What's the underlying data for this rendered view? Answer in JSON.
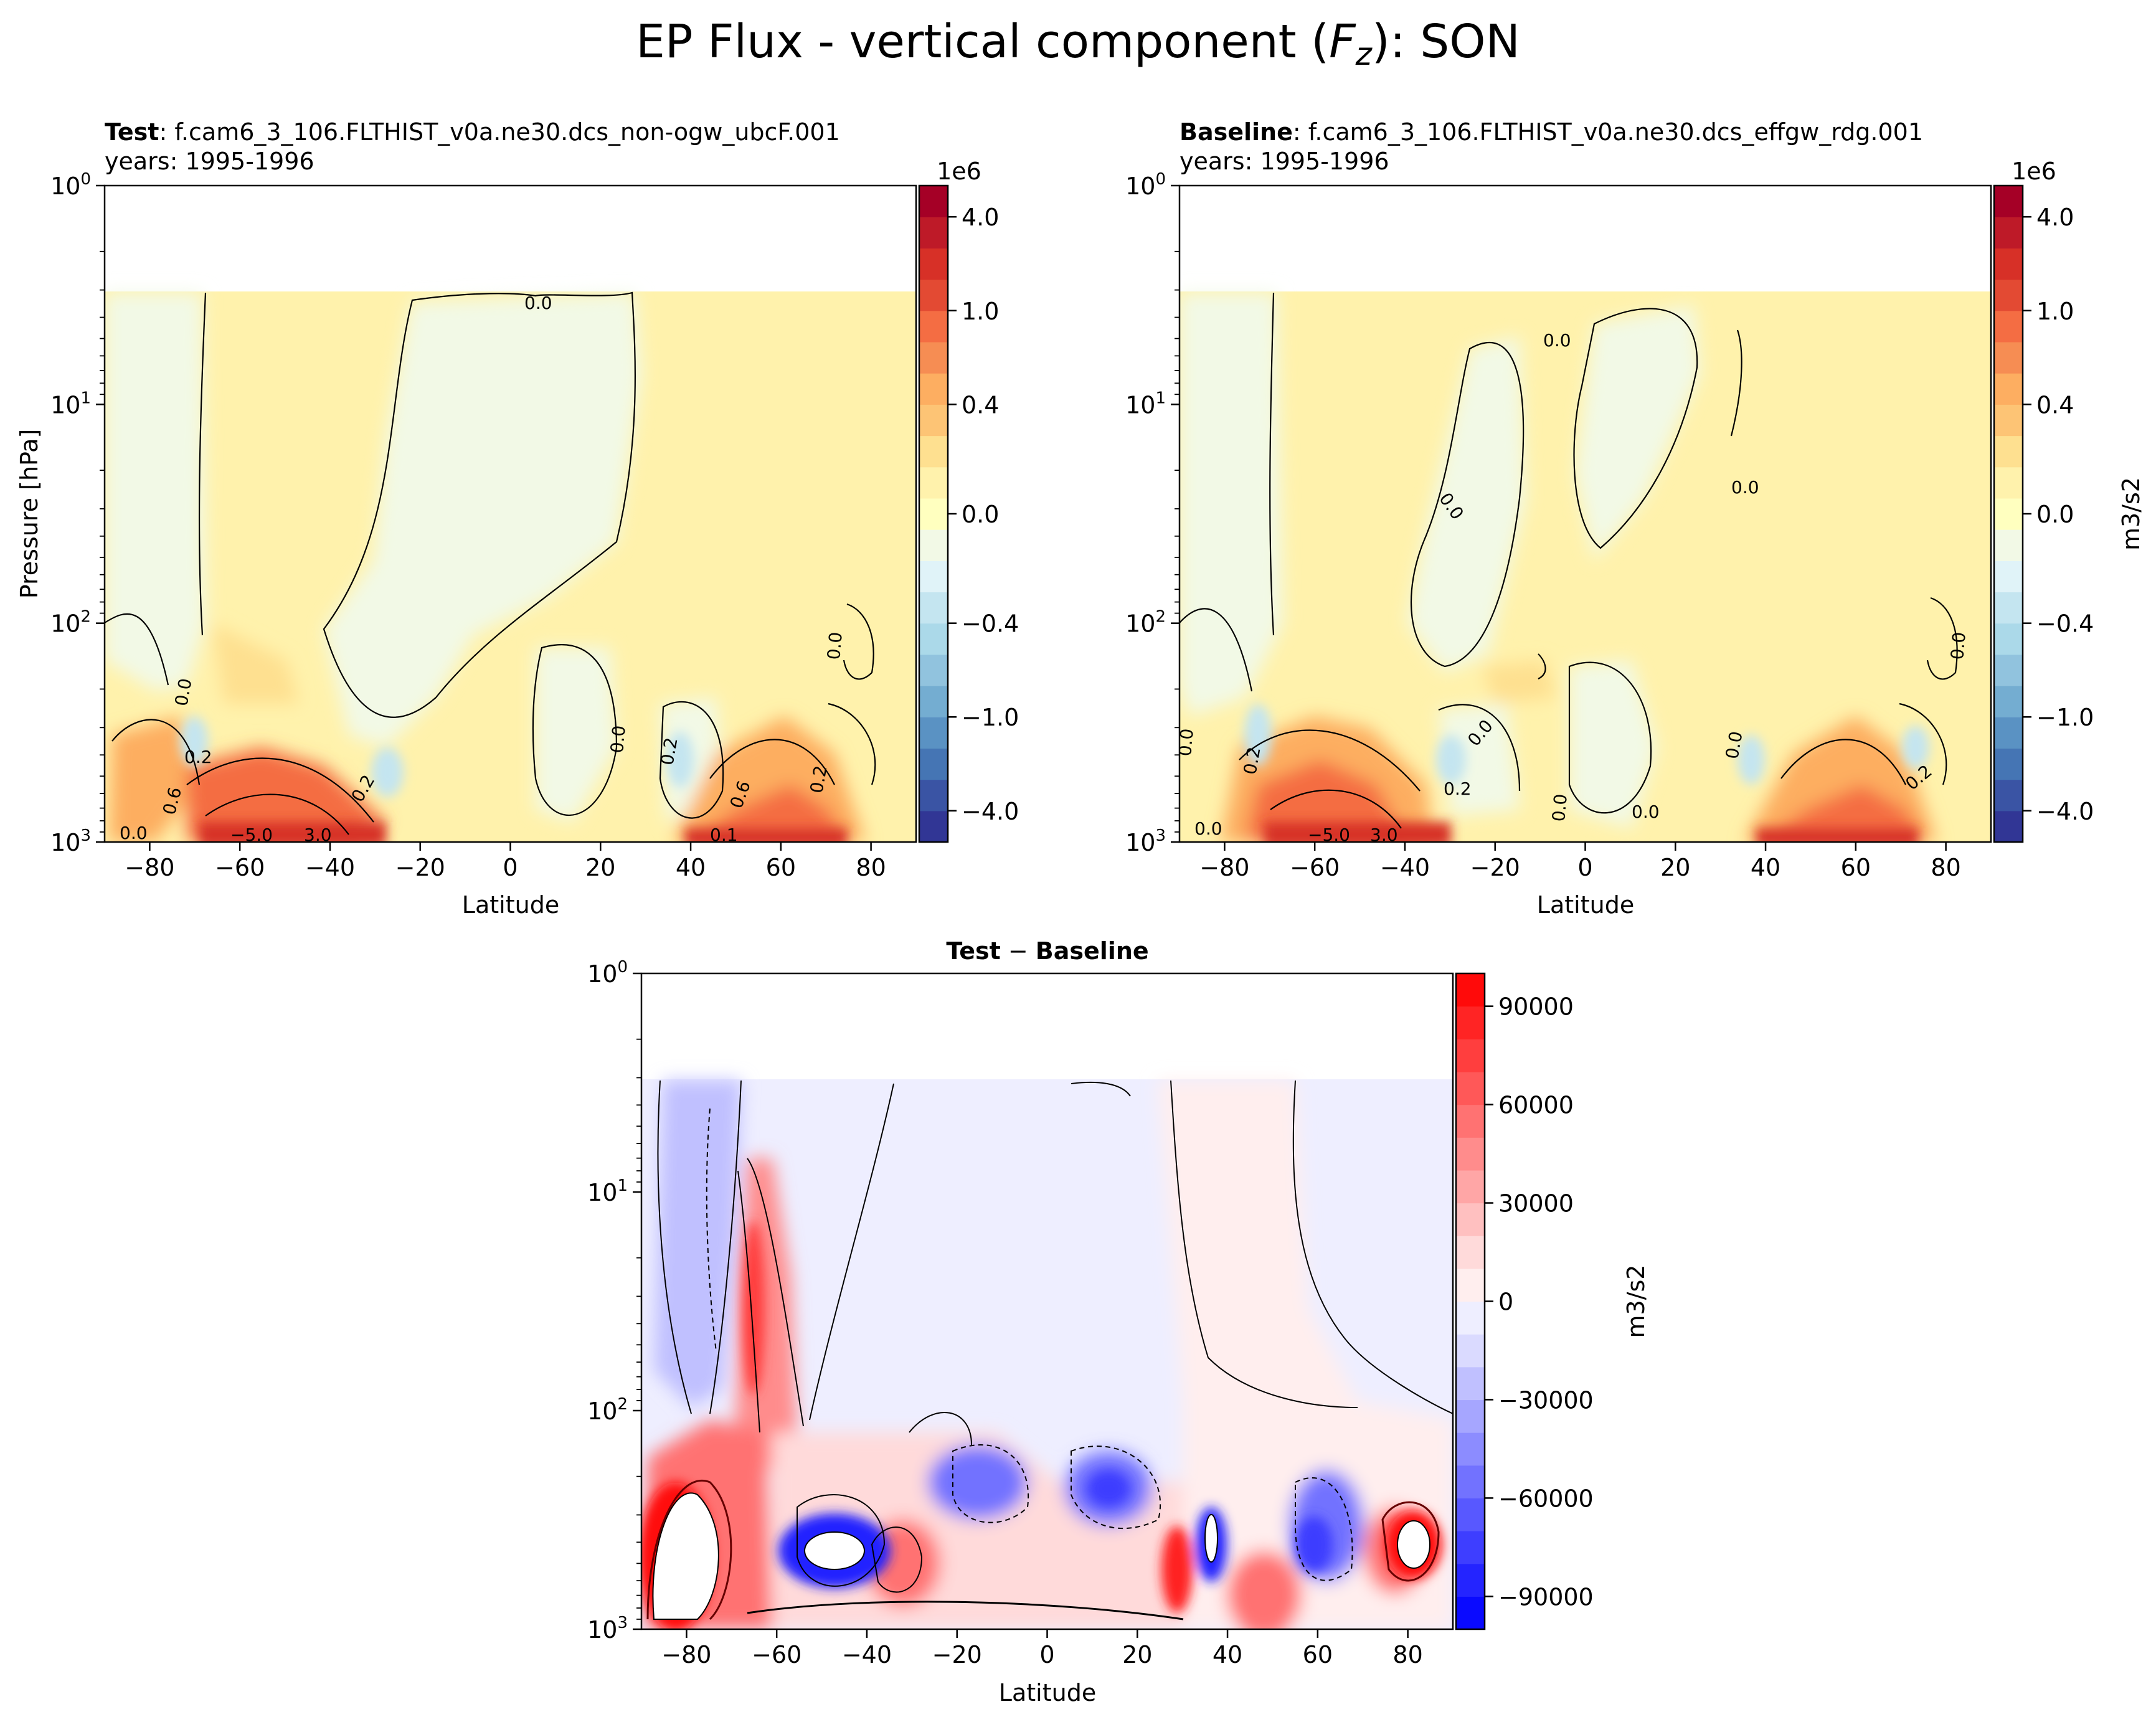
{
  "figure": {
    "title_prefix": "EP Flux - vertical component (",
    "title_var": "F",
    "title_sub": "z",
    "title_suffix": "): SON"
  },
  "chart_data": [
    {
      "type": "heatmap",
      "panel": "test",
      "title_bold": "Test",
      "title_rest": ": f.cam6_3_106.FLTHIST_v0a.ne30.dcs_non-ogw_ubcF.001",
      "title_years": "years: 1995-1996",
      "xlabel": "Latitude",
      "ylabel": "Pressure [hPa]",
      "xlim": [
        -90,
        90
      ],
      "xticks": [
        "−80",
        "−60",
        "−40",
        "−20",
        "0",
        "20",
        "40",
        "60",
        "80"
      ],
      "ylim": [
        1000,
        1
      ],
      "yscale": "log",
      "yticks": [
        "10",
        "10",
        "10",
        "10"
      ],
      "ytick_exponents": [
        "0",
        "1",
        "2",
        "3"
      ],
      "data_top_hPa": 3,
      "colorbar": {
        "offset_label": "1e6",
        "tick_labels": [
          "4.0",
          "1.0",
          "0.4",
          "0.0",
          "−0.4",
          "−1.0",
          "−4.0"
        ],
        "unit": "",
        "colors": [
          "#313695",
          "#3a54a4",
          "#4575b4",
          "#5a92c3",
          "#74add1",
          "#91c3de",
          "#abd9e9",
          "#c4e5f0",
          "#e0f3f8",
          "#f2f9e6",
          "#ffffbf",
          "#fff2ac",
          "#fee090",
          "#fdc475",
          "#fdae61",
          "#f68d53",
          "#f46d43",
          "#e34a33",
          "#d73027",
          "#be1a28",
          "#a50026"
        ]
      },
      "contour_labels": [
        "0.0",
        "0.0",
        "0.0",
        "0.0",
        "0.2",
        "0.6",
        "0.2",
        "0.2",
        "0.6",
        "0.2",
        "0.0",
        "−5.0",
        "3.0",
        "0.1"
      ]
    },
    {
      "type": "heatmap",
      "panel": "baseline",
      "title_bold": "Baseline",
      "title_rest": ": f.cam6_3_106.FLTHIST_v0a.ne30.dcs_effgw_rdg.001",
      "title_years": "years: 1995-1996",
      "xlabel": "Latitude",
      "ylabel": "",
      "xlim": [
        -90,
        90
      ],
      "xticks": [
        "−80",
        "−60",
        "−40",
        "−20",
        "0",
        "20",
        "40",
        "60",
        "80"
      ],
      "ylim": [
        1000,
        1
      ],
      "yscale": "log",
      "yticks": [
        "10",
        "10",
        "10",
        "10"
      ],
      "ytick_exponents": [
        "0",
        "1",
        "2",
        "3"
      ],
      "data_top_hPa": 3,
      "colorbar": {
        "offset_label": "1e6",
        "tick_labels": [
          "4.0",
          "1.0",
          "0.4",
          "0.0",
          "−0.4",
          "−1.0",
          "−4.0"
        ],
        "unit": "m3/s2"
      },
      "contour_labels": [
        "0.0",
        "0.0",
        "0.0",
        "0.0",
        "0.0",
        "0.2",
        "0.0",
        "0.2",
        "0.0",
        "0.0",
        "0.0",
        "0.2",
        "0.0",
        "−5.0",
        "3.0"
      ]
    },
    {
      "type": "heatmap",
      "panel": "difference",
      "title_bold": "Test",
      "title_mid": " − ",
      "title_bold2": "Baseline",
      "xlabel": "Latitude",
      "xlim": [
        -90,
        90
      ],
      "xticks": [
        "−80",
        "−60",
        "−40",
        "−20",
        "0",
        "20",
        "40",
        "60",
        "80"
      ],
      "ylim": [
        1000,
        1
      ],
      "yscale": "log",
      "yticks": [
        "10",
        "10",
        "10",
        "10"
      ],
      "ytick_exponents": [
        "0",
        "1",
        "2",
        "3"
      ],
      "data_top_hPa": 3,
      "colorbar": {
        "tick_labels": [
          "90000",
          "60000",
          "30000",
          "0",
          "−30000",
          "−60000",
          "−90000"
        ],
        "tick_values": [
          90000,
          60000,
          30000,
          0,
          -30000,
          -60000,
          -90000
        ],
        "range": [
          -100000,
          100000
        ],
        "unit": "m3/s2",
        "colors": [
          "#0a0aff",
          "#2424ff",
          "#3e3eff",
          "#5858ff",
          "#7272ff",
          "#8c8cff",
          "#a6a6ff",
          "#c0c0ff",
          "#dadaff",
          "#eeeeff",
          "#ffeeee",
          "#ffdada",
          "#ffc0c0",
          "#ffa6a6",
          "#ff8c8c",
          "#ff7272",
          "#ff5858",
          "#ff3e3e",
          "#ff2424",
          "#ff0a0a"
        ]
      }
    }
  ]
}
